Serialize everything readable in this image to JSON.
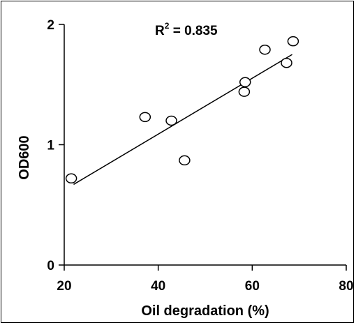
{
  "chart_data": {
    "type": "scatter",
    "xlabel": "Oil degradation (%)",
    "ylabel": "OD600",
    "xlim": [
      20,
      80
    ],
    "ylim": [
      0,
      2
    ],
    "x_ticks": [
      20,
      40,
      60,
      80
    ],
    "y_ticks": [
      0,
      1,
      2
    ],
    "x_tick_labels": [
      "20",
      "40",
      "60",
      "80"
    ],
    "y_tick_labels": [
      "0",
      "1",
      "2"
    ],
    "grid": false,
    "series": [
      {
        "points": [
          {
            "x": 21.5,
            "y": 0.72
          },
          {
            "x": 37.2,
            "y": 1.23
          },
          {
            "x": 42.8,
            "y": 1.2
          },
          {
            "x": 45.6,
            "y": 0.87
          },
          {
            "x": 58.3,
            "y": 1.44
          },
          {
            "x": 58.5,
            "y": 1.52
          },
          {
            "x": 62.7,
            "y": 1.79
          },
          {
            "x": 67.3,
            "y": 1.68
          },
          {
            "x": 68.7,
            "y": 1.86
          }
        ],
        "color": "#000000",
        "marker": "open-circle"
      }
    ],
    "trendline": {
      "x": [
        22,
        68.5
      ],
      "y": [
        0.67,
        1.75
      ]
    },
    "annotation": {
      "base": "R",
      "superscript": "2",
      "text": " = 0.835"
    }
  }
}
